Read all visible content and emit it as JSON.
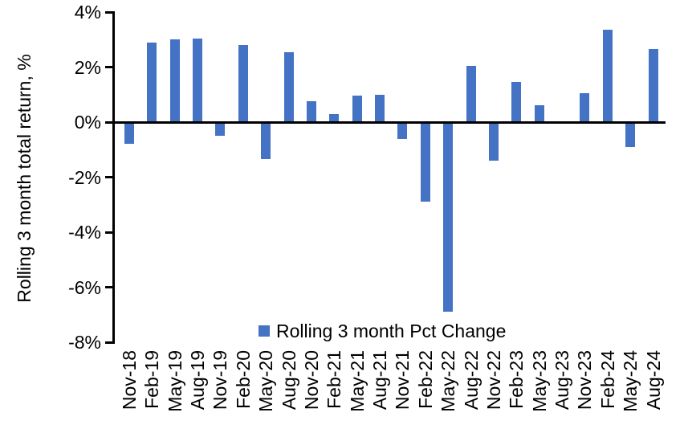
{
  "chart_data": {
    "type": "bar",
    "title": "",
    "xlabel": "",
    "ylabel": "Rolling 3 month total return, %",
    "legend": [
      "Rolling 3 month Pct Change"
    ],
    "legend_position": "bottom-inside-centered",
    "grid": false,
    "ylim": [
      -8,
      4
    ],
    "ytick_values": [
      4,
      2,
      0,
      -2,
      -4,
      -6,
      -8
    ],
    "ytick_labels": [
      "4%",
      "2%",
      "0%",
      "-2%",
      "-4%",
      "-6%",
      "-8%"
    ],
    "categories": [
      "Nov-18",
      "Feb-19",
      "May-19",
      "Aug-19",
      "Nov-19",
      "Feb-20",
      "May-20",
      "Aug-20",
      "Nov-20",
      "Feb-21",
      "May-21",
      "Aug-21",
      "Nov-21",
      "Feb-22",
      "May-22",
      "Aug-22",
      "Nov-22",
      "Feb-23",
      "May-23",
      "Aug-23",
      "Nov-23",
      "Feb-24",
      "May-24",
      "Aug-24"
    ],
    "values": [
      -0.8,
      2.9,
      3.0,
      3.05,
      -0.5,
      2.8,
      -1.35,
      2.55,
      0.75,
      0.3,
      0.95,
      1.0,
      -0.6,
      -2.9,
      -6.9,
      2.05,
      -1.4,
      1.45,
      0.6,
      0.0,
      1.05,
      3.35,
      -0.9,
      2.65
    ],
    "colors": {
      "bar": "#4472C4",
      "axis": "#000000",
      "text": "#000000",
      "background": "#FFFFFF"
    }
  }
}
